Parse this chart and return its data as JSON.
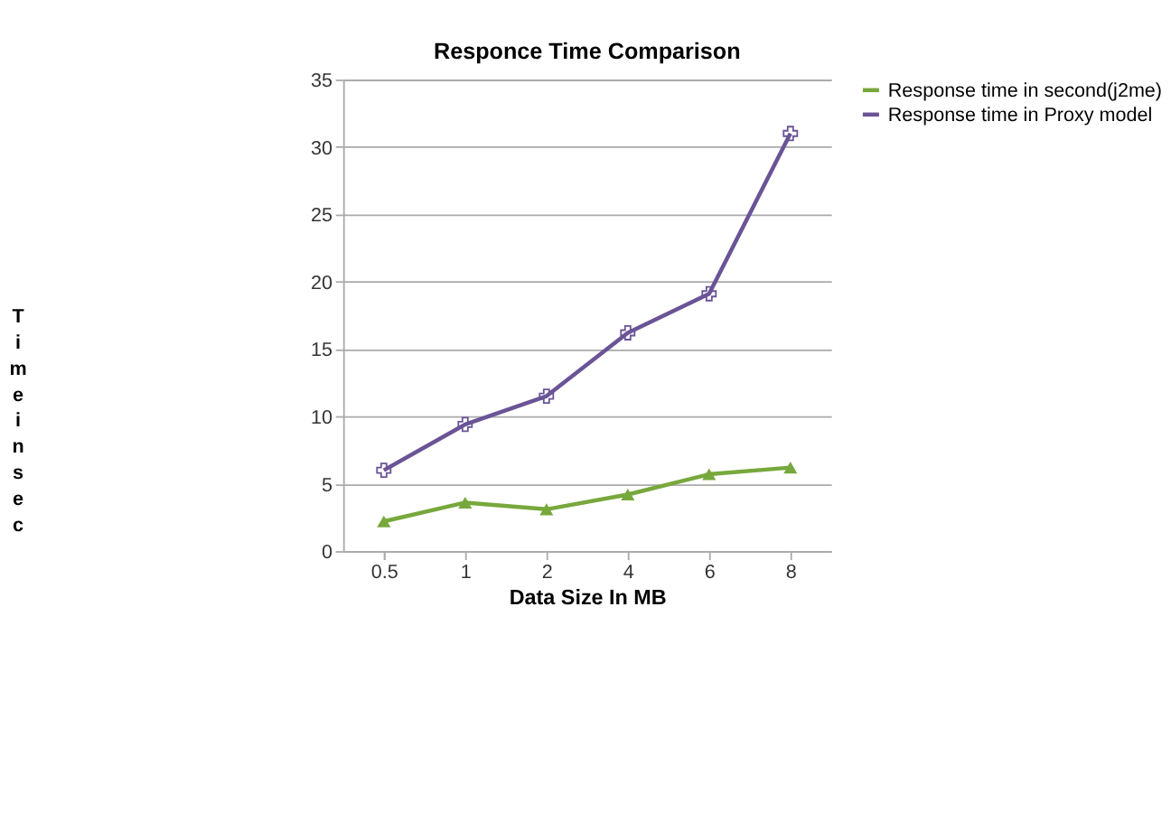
{
  "chart_data": {
    "type": "line",
    "title": "Responce Time  Comparison",
    "xlabel": "Data Size In MB",
    "ylabel": "Time in sec",
    "categories": [
      "0.5",
      "1",
      "2",
      "4",
      "6",
      "8"
    ],
    "series": [
      {
        "name": "Response time in second(j2me)",
        "color": "#77a83c",
        "marker": "triangle",
        "values": [
          2.2,
          3.6,
          3.1,
          4.2,
          5.7,
          6.2
        ]
      },
      {
        "name": "Response time in Proxy model",
        "color": "#6a5496",
        "marker": "cross",
        "values": [
          6.0,
          9.4,
          11.5,
          16.2,
          19.1,
          31.0
        ]
      }
    ],
    "ylim": [
      0,
      35
    ],
    "yticks": [
      0,
      5,
      10,
      15,
      20,
      25,
      30,
      35
    ],
    "grid": "y",
    "legend": "right"
  }
}
